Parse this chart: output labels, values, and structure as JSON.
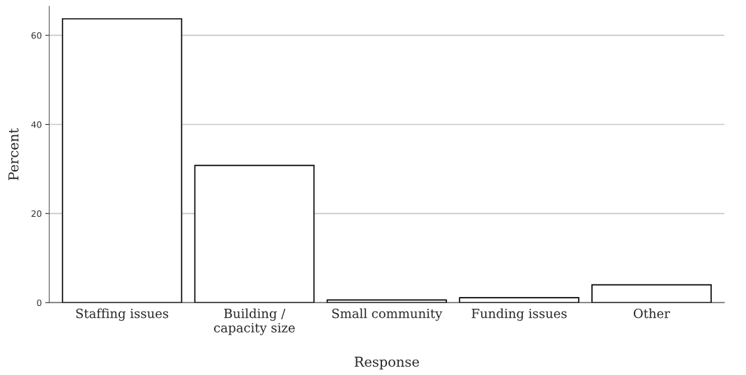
{
  "chart_data": {
    "type": "bar",
    "xlabel": "Response",
    "ylabel": "Percent",
    "categories": [
      "Staffing issues",
      "Building /\ncapacity size",
      "Small community",
      "Funding issues",
      "Other"
    ],
    "values": [
      63.7,
      30.8,
      0.6,
      1.1,
      4.0
    ],
    "color": "#ffffff",
    "ylim": [
      0,
      66.5
    ],
    "yticks": [
      0,
      20,
      40,
      60
    ],
    "grid": "y"
  }
}
